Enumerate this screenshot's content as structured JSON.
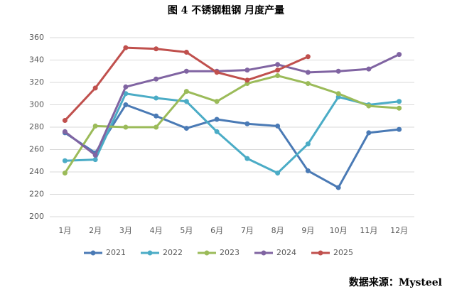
{
  "chart_data": {
    "type": "line",
    "title": "图 4 不锈钢粗钢 月度产量",
    "source": "数据来源：Mysteel",
    "categories": [
      "1月",
      "2月",
      "3月",
      "4月",
      "5月",
      "6月",
      "7月",
      "8月",
      "9月",
      "10月",
      "11月",
      "12月"
    ],
    "series": [
      {
        "name": "2021",
        "color": "#4a7ab5",
        "values": [
          275,
          257,
          300,
          290,
          279,
          287,
          283,
          281,
          241,
          226,
          275,
          278
        ]
      },
      {
        "name": "2022",
        "color": "#4bacc6",
        "values": [
          250,
          251,
          310,
          306,
          303,
          276,
          252,
          239,
          265,
          307,
          300,
          303
        ]
      },
      {
        "name": "2023",
        "color": "#9bbb59",
        "values": [
          239,
          281,
          280,
          280,
          312,
          303,
          319,
          326,
          319,
          310,
          299,
          297
        ]
      },
      {
        "name": "2024",
        "color": "#8064a2",
        "values": [
          276,
          255,
          316,
          323,
          330,
          330,
          331,
          336,
          329,
          330,
          332,
          345
        ]
      },
      {
        "name": "2025",
        "color": "#c0504d",
        "values": [
          286,
          315,
          351,
          350,
          347,
          329,
          322,
          331,
          343,
          null,
          null,
          null
        ]
      }
    ],
    "ylim": [
      200,
      360
    ],
    "yticks": [
      200,
      220,
      240,
      260,
      280,
      300,
      320,
      340,
      360
    ],
    "grid": true,
    "legend": "bottom"
  }
}
